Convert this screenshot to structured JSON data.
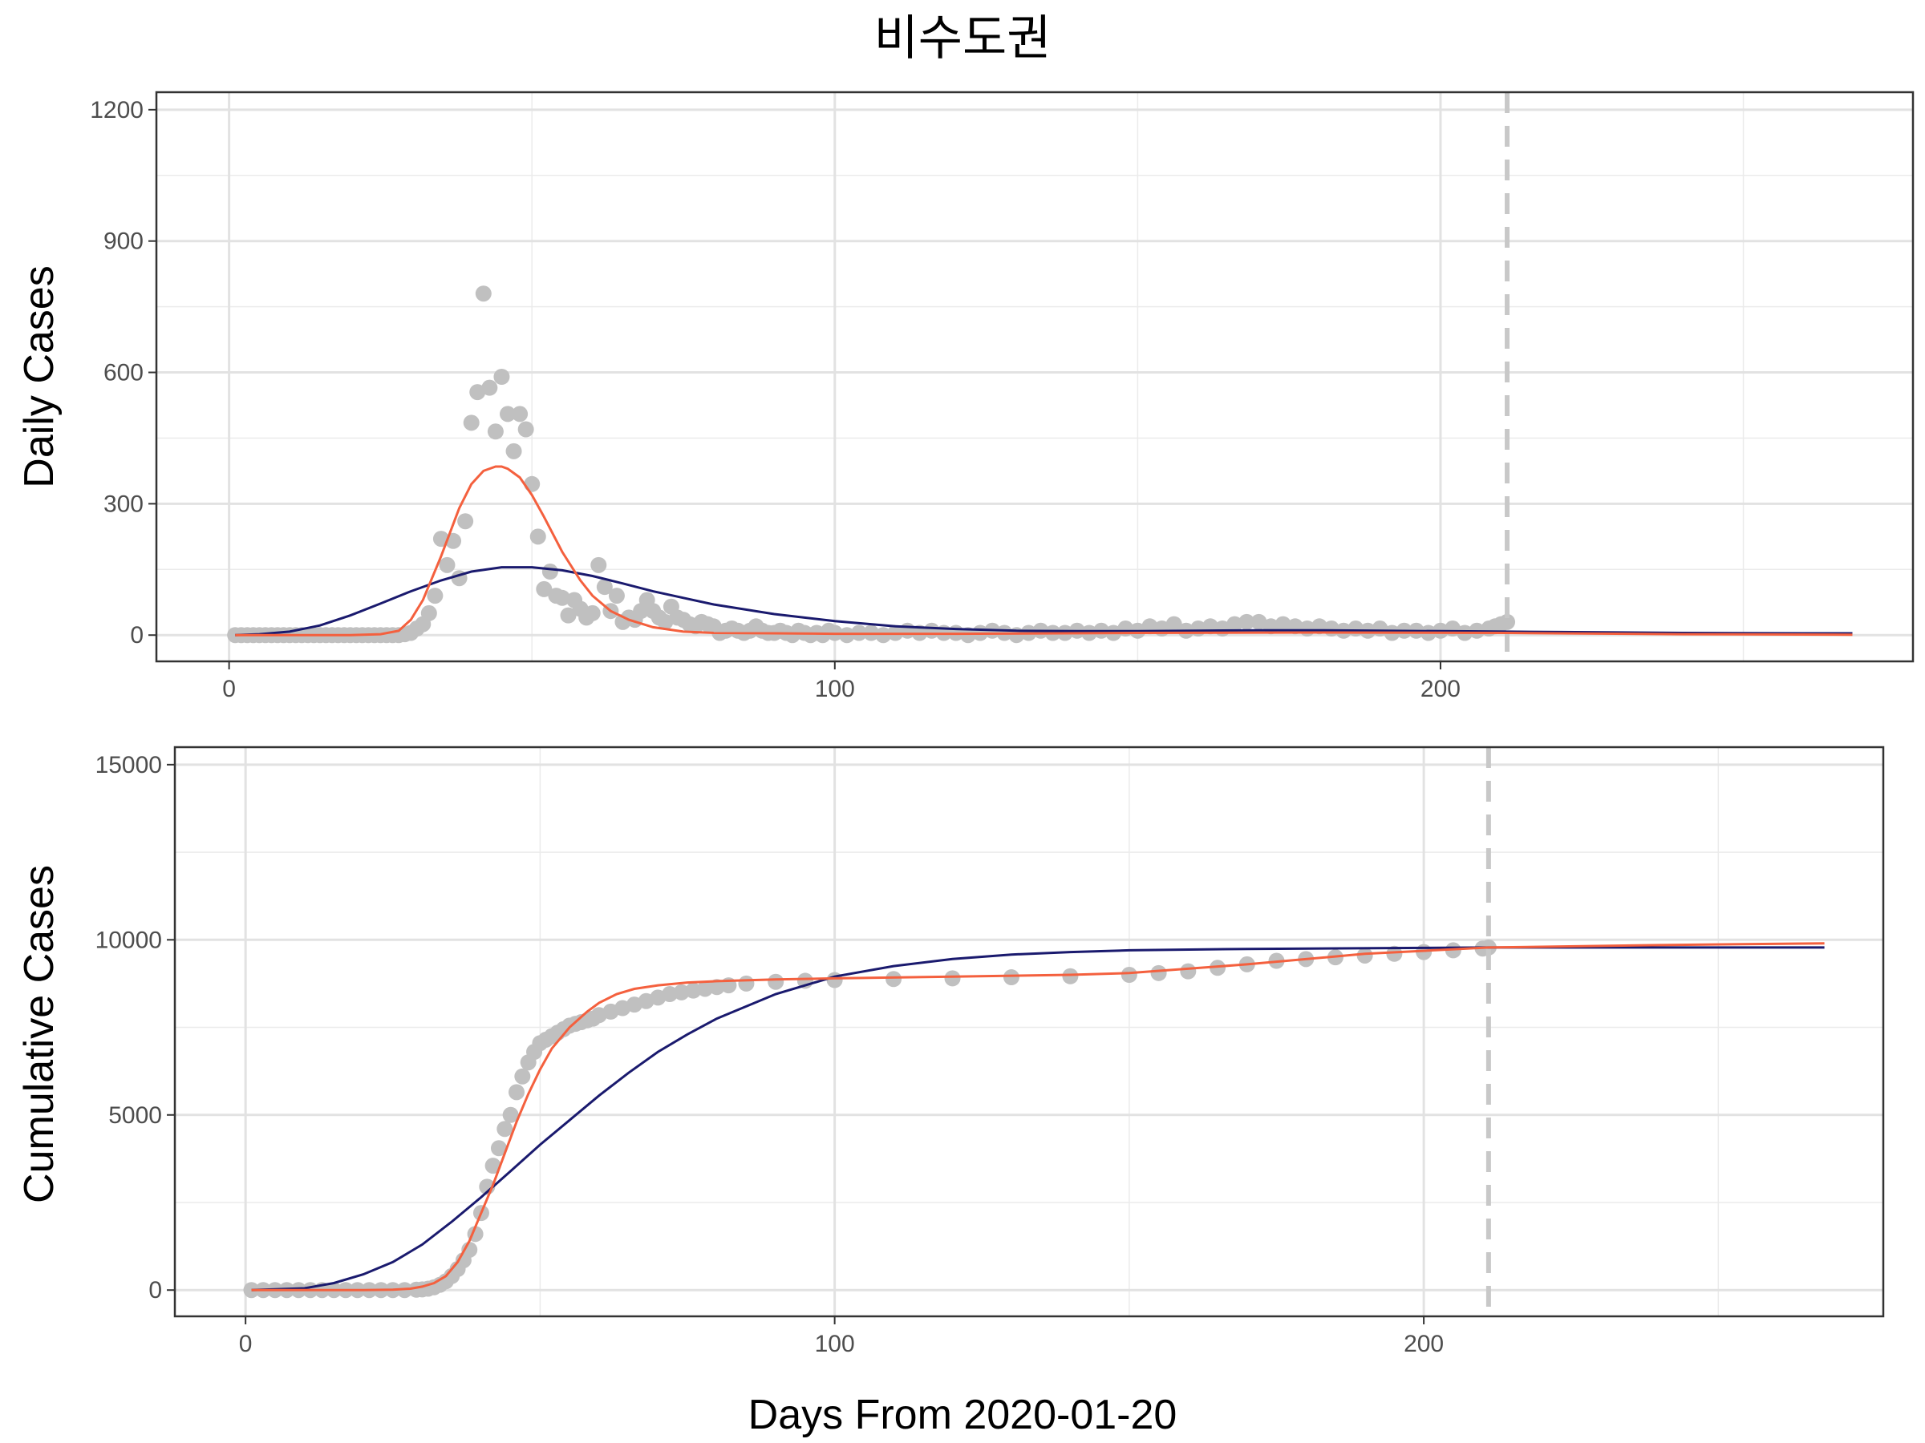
{
  "chart_data": [
    {
      "type": "scatter",
      "title": "비수도권",
      "xlabel": "Days From 2020-01-20",
      "ylabel": "Daily Cases",
      "xlim": [
        -12,
        278
      ],
      "ylim": [
        -60,
        1240
      ],
      "x_ticks": [
        0,
        100,
        200
      ],
      "y_ticks": [
        0,
        300,
        600,
        900,
        1200
      ],
      "grid": true,
      "vline": {
        "x": 211,
        "style": "dashed",
        "color": "#c8c8c8"
      },
      "colors": {
        "points": "#c0c0c0",
        "fit_a": "#1a1a6e",
        "fit_b": "#f4603e"
      },
      "points_observed": [
        [
          1,
          0
        ],
        [
          2,
          0
        ],
        [
          3,
          0
        ],
        [
          4,
          0
        ],
        [
          5,
          0
        ],
        [
          6,
          0
        ],
        [
          7,
          0
        ],
        [
          8,
          0
        ],
        [
          9,
          0
        ],
        [
          10,
          0
        ],
        [
          11,
          0
        ],
        [
          12,
          0
        ],
        [
          13,
          0
        ],
        [
          14,
          0
        ],
        [
          15,
          0
        ],
        [
          16,
          0
        ],
        [
          17,
          0
        ],
        [
          18,
          0
        ],
        [
          19,
          0
        ],
        [
          20,
          0
        ],
        [
          21,
          0
        ],
        [
          22,
          0
        ],
        [
          23,
          0
        ],
        [
          24,
          0
        ],
        [
          25,
          0
        ],
        [
          26,
          0
        ],
        [
          27,
          0
        ],
        [
          28,
          0
        ],
        [
          29,
          2
        ],
        [
          30,
          5
        ],
        [
          31,
          15
        ],
        [
          32,
          25
        ],
        [
          33,
          50
        ],
        [
          34,
          90
        ],
        [
          35,
          220
        ],
        [
          36,
          160
        ],
        [
          37,
          215
        ],
        [
          38,
          130
        ],
        [
          39,
          260
        ],
        [
          40,
          485
        ],
        [
          41,
          555
        ],
        [
          42,
          780
        ],
        [
          43,
          565
        ],
        [
          44,
          465
        ],
        [
          45,
          590
        ],
        [
          46,
          505
        ],
        [
          47,
          420
        ],
        [
          48,
          505
        ],
        [
          49,
          470
        ],
        [
          50,
          345
        ],
        [
          51,
          225
        ],
        [
          52,
          105
        ],
        [
          53,
          145
        ],
        [
          54,
          90
        ],
        [
          55,
          85
        ],
        [
          56,
          45
        ],
        [
          57,
          80
        ],
        [
          58,
          60
        ],
        [
          59,
          40
        ],
        [
          60,
          50
        ],
        [
          61,
          160
        ],
        [
          62,
          110
        ],
        [
          63,
          55
        ],
        [
          64,
          90
        ],
        [
          65,
          30
        ],
        [
          66,
          40
        ],
        [
          67,
          35
        ],
        [
          68,
          55
        ],
        [
          69,
          80
        ],
        [
          70,
          55
        ],
        [
          71,
          40
        ],
        [
          72,
          30
        ],
        [
          73,
          65
        ],
        [
          74,
          40
        ],
        [
          75,
          35
        ],
        [
          76,
          25
        ],
        [
          77,
          20
        ],
        [
          78,
          30
        ],
        [
          79,
          25
        ],
        [
          80,
          20
        ],
        [
          81,
          5
        ],
        [
          82,
          10
        ],
        [
          83,
          15
        ],
        [
          84,
          10
        ],
        [
          85,
          5
        ],
        [
          86,
          10
        ],
        [
          87,
          20
        ],
        [
          88,
          10
        ],
        [
          89,
          5
        ],
        [
          90,
          5
        ],
        [
          91,
          10
        ],
        [
          92,
          5
        ],
        [
          93,
          0
        ],
        [
          94,
          10
        ],
        [
          95,
          5
        ],
        [
          96,
          0
        ],
        [
          97,
          5
        ],
        [
          98,
          0
        ],
        [
          99,
          10
        ],
        [
          100,
          5
        ],
        [
          102,
          0
        ],
        [
          104,
          5
        ],
        [
          106,
          5
        ],
        [
          108,
          0
        ],
        [
          110,
          5
        ],
        [
          112,
          10
        ],
        [
          114,
          5
        ],
        [
          116,
          10
        ],
        [
          118,
          5
        ],
        [
          120,
          5
        ],
        [
          122,
          0
        ],
        [
          124,
          5
        ],
        [
          126,
          10
        ],
        [
          128,
          5
        ],
        [
          130,
          0
        ],
        [
          132,
          5
        ],
        [
          134,
          10
        ],
        [
          136,
          5
        ],
        [
          138,
          5
        ],
        [
          140,
          10
        ],
        [
          142,
          5
        ],
        [
          144,
          10
        ],
        [
          146,
          5
        ],
        [
          148,
          15
        ],
        [
          150,
          10
        ],
        [
          152,
          20
        ],
        [
          154,
          15
        ],
        [
          156,
          25
        ],
        [
          158,
          10
        ],
        [
          160,
          15
        ],
        [
          162,
          20
        ],
        [
          164,
          15
        ],
        [
          166,
          25
        ],
        [
          168,
          30
        ],
        [
          170,
          30
        ],
        [
          172,
          20
        ],
        [
          174,
          25
        ],
        [
          176,
          20
        ],
        [
          178,
          15
        ],
        [
          180,
          20
        ],
        [
          182,
          15
        ],
        [
          184,
          10
        ],
        [
          186,
          15
        ],
        [
          188,
          10
        ],
        [
          190,
          15
        ],
        [
          192,
          5
        ],
        [
          194,
          10
        ],
        [
          196,
          10
        ],
        [
          198,
          5
        ],
        [
          200,
          10
        ],
        [
          202,
          15
        ],
        [
          204,
          5
        ],
        [
          206,
          10
        ],
        [
          208,
          15
        ],
        [
          209,
          20
        ],
        [
          210,
          25
        ],
        [
          211,
          30
        ]
      ],
      "series": [
        {
          "x": [
            1,
            5,
            10,
            15,
            20,
            25,
            30,
            35,
            40,
            45,
            50,
            55,
            60,
            65,
            70,
            75,
            80,
            90,
            100,
            110,
            120,
            130,
            140,
            150,
            160,
            170,
            180,
            190,
            200,
            211,
            220,
            240,
            260,
            268
          ],
          "values": [
            0,
            2,
            8,
            22,
            45,
            72,
            100,
            125,
            145,
            155,
            155,
            148,
            135,
            118,
            100,
            85,
            70,
            48,
            32,
            20,
            14,
            10,
            9,
            9,
            10,
            11,
            11,
            10,
            9,
            8,
            7,
            5,
            4,
            4
          ],
          "color": "#1a1a6e"
        },
        {
          "x": [
            1,
            10,
            20,
            25,
            28,
            30,
            32,
            35,
            38,
            40,
            42,
            44,
            45,
            46,
            48,
            50,
            52,
            55,
            58,
            60,
            63,
            66,
            70,
            75,
            80,
            90,
            100,
            120,
            150,
            180,
            211,
            240,
            268
          ],
          "values": [
            0,
            0,
            0,
            2,
            10,
            35,
            80,
            180,
            290,
            345,
            375,
            385,
            385,
            380,
            360,
            320,
            270,
            190,
            125,
            90,
            55,
            35,
            18,
            8,
            5,
            4,
            3,
            3,
            5,
            6,
            5,
            2,
            1
          ],
          "color": "#f4603e"
        }
      ]
    },
    {
      "type": "scatter",
      "xlabel": "Days From 2020-01-20",
      "ylabel": "Cumulative Cases",
      "xlim": [
        -12,
        278
      ],
      "ylim": [
        -750,
        15500
      ],
      "x_ticks": [
        0,
        100,
        200
      ],
      "y_ticks": [
        0,
        5000,
        10000,
        15000
      ],
      "grid": true,
      "vline": {
        "x": 211,
        "style": "dashed",
        "color": "#c8c8c8"
      },
      "colors": {
        "points": "#c0c0c0",
        "fit_a": "#1a1a6e",
        "fit_b": "#f4603e"
      },
      "points_observed": [
        [
          1,
          0
        ],
        [
          3,
          0
        ],
        [
          5,
          0
        ],
        [
          7,
          0
        ],
        [
          9,
          0
        ],
        [
          11,
          0
        ],
        [
          13,
          0
        ],
        [
          15,
          0
        ],
        [
          17,
          0
        ],
        [
          19,
          0
        ],
        [
          21,
          0
        ],
        [
          23,
          0
        ],
        [
          25,
          0
        ],
        [
          27,
          0
        ],
        [
          29,
          10
        ],
        [
          30,
          20
        ],
        [
          31,
          40
        ],
        [
          32,
          80
        ],
        [
          33,
          150
        ],
        [
          34,
          250
        ],
        [
          35,
          400
        ],
        [
          36,
          600
        ],
        [
          37,
          850
        ],
        [
          38,
          1150
        ],
        [
          39,
          1600
        ],
        [
          40,
          2200
        ],
        [
          41,
          2950
        ],
        [
          42,
          3550
        ],
        [
          43,
          4050
        ],
        [
          44,
          4600
        ],
        [
          45,
          5000
        ],
        [
          46,
          5650
        ],
        [
          47,
          6100
        ],
        [
          48,
          6500
        ],
        [
          49,
          6800
        ],
        [
          50,
          7050
        ],
        [
          51,
          7150
        ],
        [
          52,
          7250
        ],
        [
          53,
          7350
        ],
        [
          54,
          7450
        ],
        [
          55,
          7550
        ],
        [
          56,
          7600
        ],
        [
          57,
          7650
        ],
        [
          58,
          7700
        ],
        [
          59,
          7750
        ],
        [
          60,
          7850
        ],
        [
          62,
          7950
        ],
        [
          64,
          8050
        ],
        [
          66,
          8150
        ],
        [
          68,
          8250
        ],
        [
          70,
          8350
        ],
        [
          72,
          8450
        ],
        [
          74,
          8500
        ],
        [
          76,
          8550
        ],
        [
          78,
          8600
        ],
        [
          80,
          8650
        ],
        [
          82,
          8700
        ],
        [
          85,
          8750
        ],
        [
          90,
          8800
        ],
        [
          95,
          8830
        ],
        [
          100,
          8850
        ],
        [
          110,
          8880
        ],
        [
          120,
          8900
        ],
        [
          130,
          8930
        ],
        [
          140,
          8960
        ],
        [
          150,
          9000
        ],
        [
          155,
          9050
        ],
        [
          160,
          9100
        ],
        [
          165,
          9200
        ],
        [
          170,
          9300
        ],
        [
          175,
          9400
        ],
        [
          180,
          9450
        ],
        [
          185,
          9500
        ],
        [
          190,
          9550
        ],
        [
          195,
          9600
        ],
        [
          200,
          9650
        ],
        [
          205,
          9700
        ],
        [
          210,
          9750
        ],
        [
          211,
          9780
        ]
      ],
      "series": [
        {
          "x": [
            1,
            10,
            15,
            20,
            25,
            30,
            35,
            40,
            45,
            50,
            55,
            60,
            65,
            70,
            75,
            80,
            90,
            100,
            110,
            120,
            130,
            140,
            150,
            170,
            200,
            211,
            240,
            268
          ],
          "values": [
            0,
            50,
            200,
            450,
            800,
            1300,
            1950,
            2650,
            3400,
            4150,
            4850,
            5550,
            6200,
            6800,
            7300,
            7750,
            8450,
            8950,
            9250,
            9450,
            9580,
            9650,
            9700,
            9740,
            9770,
            9780,
            9780,
            9780
          ],
          "color": "#1a1a6e"
        },
        {
          "x": [
            1,
            10,
            20,
            25,
            28,
            30,
            32,
            34,
            36,
            38,
            40,
            42,
            44,
            46,
            48,
            50,
            52,
            55,
            58,
            60,
            63,
            66,
            70,
            75,
            80,
            90,
            100,
            120,
            140,
            150,
            170,
            190,
            211,
            240,
            268
          ],
          "values": [
            0,
            0,
            0,
            10,
            40,
            100,
            200,
            400,
            800,
            1400,
            2200,
            3000,
            3900,
            4800,
            5600,
            6300,
            6900,
            7500,
            7950,
            8200,
            8450,
            8600,
            8700,
            8780,
            8820,
            8870,
            8900,
            8950,
            9000,
            9050,
            9300,
            9600,
            9780,
            9850,
            9900
          ],
          "color": "#f4603e"
        }
      ]
    }
  ]
}
